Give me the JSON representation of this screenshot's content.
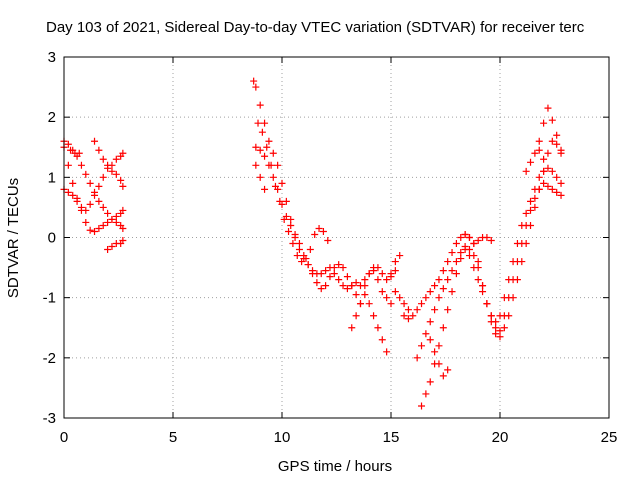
{
  "chart_data": {
    "type": "scatter",
    "title": "Day 103 of 2021, Sidereal Day-to-day VTEC variation (SDTVAR) for receiver terc",
    "xlabel": "GPS time / hours",
    "ylabel": "SDTVAR / TECUs",
    "xlim": [
      0,
      25
    ],
    "ylim": [
      -3,
      3
    ],
    "xticks": [
      0,
      5,
      10,
      15,
      20,
      25
    ],
    "yticks": [
      -3,
      -2,
      -1,
      0,
      1,
      2,
      3
    ],
    "grid": true,
    "marker": "plus",
    "color": "#ff0000",
    "series": [
      {
        "x": [
          0.0,
          0.2,
          0.4,
          0.6,
          0.8,
          1.0,
          1.2,
          1.4,
          1.6,
          1.8,
          2.0,
          2.2,
          2.4,
          2.6,
          2.7
        ],
        "y": [
          1.5,
          1.2,
          0.9,
          0.65,
          0.45,
          0.25,
          0.12,
          0.1,
          0.15,
          0.2,
          0.25,
          0.3,
          0.35,
          0.4,
          0.45
        ]
      },
      {
        "x": [
          0.0,
          0.2,
          0.4,
          0.6,
          0.8,
          1.0,
          1.2,
          1.4,
          1.6,
          1.8,
          2.0,
          2.2,
          2.4,
          2.6,
          2.7
        ],
        "y": [
          0.8,
          0.75,
          0.7,
          0.6,
          0.5,
          0.45,
          0.55,
          0.7,
          0.85,
          1.0,
          1.15,
          1.2,
          1.3,
          1.35,
          1.4
        ]
      },
      {
        "x": [
          0.0,
          0.2,
          0.4,
          0.6,
          0.8,
          1.0,
          1.2,
          1.4,
          1.6,
          1.8,
          2.0,
          2.2,
          2.4,
          2.6,
          2.7
        ],
        "y": [
          1.6,
          1.55,
          1.45,
          1.35,
          1.2,
          1.05,
          0.9,
          0.75,
          0.6,
          0.5,
          0.4,
          0.3,
          0.25,
          0.2,
          0.15
        ]
      },
      {
        "x": [
          1.4,
          1.6,
          1.8,
          2.0,
          2.2,
          2.4,
          2.6,
          2.7
        ],
        "y": [
          1.6,
          1.45,
          1.3,
          1.2,
          1.1,
          1.05,
          0.95,
          0.85
        ]
      },
      {
        "x": [
          2.0,
          2.2,
          2.4,
          2.6,
          2.7
        ],
        "y": [
          -0.2,
          -0.15,
          -0.1,
          -0.1,
          -0.05
        ]
      },
      {
        "x": [
          0.3,
          0.5,
          0.7
        ],
        "y": [
          1.45,
          1.4,
          1.4
        ]
      },
      {
        "x": [
          8.7,
          8.8,
          9.0,
          9.2,
          9.4,
          9.6,
          9.8,
          10.0,
          10.2,
          10.4,
          10.6,
          10.8,
          11.0,
          11.2,
          11.4,
          11.6,
          11.8,
          12.0,
          12.2,
          12.4,
          12.6,
          12.8,
          13.0,
          13.2,
          13.4,
          13.6,
          13.8,
          14.0,
          14.2,
          14.4,
          14.6,
          14.8,
          15.0,
          15.2
        ],
        "y": [
          2.6,
          2.5,
          2.2,
          1.9,
          1.6,
          1.4,
          1.2,
          0.9,
          0.6,
          0.3,
          0.0,
          -0.2,
          -0.35,
          -0.45,
          -0.55,
          -0.6,
          -0.6,
          -0.55,
          -0.5,
          -0.6,
          -0.7,
          -0.8,
          -0.85,
          -0.8,
          -0.75,
          -0.8,
          -0.95,
          -1.1,
          -1.3,
          -1.5,
          -1.7,
          -1.9,
          -0.6,
          -0.4
        ]
      },
      {
        "x": [
          8.8,
          9.0,
          9.2,
          9.4,
          9.6,
          9.8,
          10.0,
          10.2,
          10.4,
          10.6,
          10.8,
          11.0,
          11.2,
          11.4,
          11.6,
          11.8,
          12.0,
          12.2,
          12.4,
          12.6,
          12.8,
          13.0,
          13.2,
          13.4,
          13.6
        ],
        "y": [
          1.5,
          1.45,
          1.35,
          1.2,
          1.0,
          0.8,
          0.55,
          0.35,
          0.2,
          0.05,
          -0.1,
          -0.3,
          -0.45,
          -0.6,
          -0.75,
          -0.85,
          -0.8,
          -0.65,
          -0.5,
          -0.45,
          -0.5,
          -0.65,
          -0.8,
          -0.95,
          -1.1
        ]
      },
      {
        "x": [
          8.9,
          9.1,
          9.3,
          9.5,
          9.7,
          9.9,
          10.1,
          10.3,
          10.5,
          10.7,
          10.9,
          11.1,
          11.3,
          11.5,
          11.7,
          11.9,
          12.1
        ],
        "y": [
          1.9,
          1.75,
          1.5,
          1.2,
          0.85,
          0.6,
          0.3,
          0.1,
          -0.1,
          -0.3,
          -0.4,
          -0.35,
          -0.2,
          0.05,
          0.15,
          0.1,
          -0.05
        ]
      },
      {
        "x": [
          8.8,
          9.0,
          9.2
        ],
        "y": [
          1.2,
          1.0,
          0.8
        ]
      },
      {
        "x": [
          13.2,
          13.4,
          13.6,
          13.8,
          14.0,
          14.2,
          14.4,
          14.6,
          14.8,
          15.0,
          15.2,
          15.4,
          15.6,
          15.8
        ],
        "y": [
          -1.5,
          -1.3,
          -1.1,
          -0.8,
          -0.6,
          -0.5,
          -0.7,
          -0.9,
          -1.0,
          -1.1,
          -0.9,
          -1.0,
          -1.1,
          -1.2
        ]
      },
      {
        "x": [
          13.8,
          14.0,
          14.2,
          14.4,
          14.6,
          14.8,
          15.0,
          15.2,
          15.4
        ],
        "y": [
          -0.7,
          -0.6,
          -0.55,
          -0.5,
          -0.6,
          -0.7,
          -0.65,
          -0.55,
          -0.3
        ]
      },
      {
        "x": [
          15.6,
          15.8,
          16.0,
          16.2,
          16.4,
          16.6,
          16.8,
          17.0,
          17.2,
          17.4,
          17.6,
          17.8,
          18.0,
          18.2,
          18.4,
          18.6,
          18.8,
          19.0,
          19.2,
          19.4,
          19.6,
          19.8,
          20.0,
          20.2,
          20.4,
          20.6,
          20.8,
          21.0,
          21.2,
          21.4,
          21.6,
          21.8,
          22.0,
          22.2,
          22.4,
          22.6,
          22.8
        ],
        "y": [
          -1.3,
          -1.35,
          -1.3,
          -1.2,
          -1.1,
          -1.0,
          -0.9,
          -0.8,
          -0.7,
          -0.55,
          -0.4,
          -0.25,
          -0.1,
          0.0,
          0.05,
          0.0,
          -0.1,
          -0.4,
          -0.8,
          -1.1,
          -1.3,
          -1.4,
          -1.3,
          -1.0,
          -0.7,
          -0.4,
          -0.1,
          0.2,
          0.4,
          0.6,
          0.8,
          1.0,
          1.1,
          1.15,
          1.1,
          1.0,
          0.9
        ]
      },
      {
        "x": [
          16.2,
          16.4,
          16.6,
          16.8,
          17.0,
          17.2,
          17.4,
          17.6,
          17.8,
          18.0,
          18.2,
          18.4,
          18.6,
          18.8,
          19.0,
          19.2,
          19.4,
          19.6,
          19.8,
          20.0,
          20.2,
          20.4,
          20.6,
          20.8,
          21.0,
          21.2,
          21.4,
          21.6,
          21.8,
          22.0,
          22.2,
          22.4,
          22.6,
          22.8
        ],
        "y": [
          -2.0,
          -1.8,
          -1.6,
          -1.4,
          -1.2,
          -1.0,
          -0.85,
          -0.7,
          -0.55,
          -0.4,
          -0.25,
          -0.15,
          -0.2,
          -0.3,
          -0.5,
          -0.8,
          -1.1,
          -1.4,
          -1.6,
          -1.55,
          -1.3,
          -1.0,
          -0.7,
          -0.4,
          -0.1,
          0.2,
          0.45,
          0.65,
          0.8,
          0.9,
          0.85,
          0.8,
          0.75,
          0.7
        ]
      },
      {
        "x": [
          16.4,
          16.6,
          16.8,
          17.0,
          17.2,
          17.4,
          17.6,
          17.8,
          18.0,
          18.2,
          18.4,
          18.6,
          18.8,
          19.0,
          19.2,
          19.4,
          19.6,
          19.8,
          20.0,
          20.2,
          20.4,
          20.6,
          20.8,
          21.0,
          21.2,
          21.4,
          21.6,
          21.8,
          22.0,
          22.2,
          22.4,
          22.6,
          22.8
        ],
        "y": [
          -2.8,
          -2.6,
          -2.4,
          -2.1,
          -1.8,
          -1.5,
          -1.2,
          -0.9,
          -0.6,
          -0.35,
          -0.2,
          -0.3,
          -0.5,
          -0.7,
          -0.9,
          -1.1,
          -1.3,
          -1.5,
          -1.65,
          -1.5,
          -1.3,
          -1.0,
          -0.7,
          -0.4,
          -0.1,
          0.2,
          0.5,
          0.8,
          1.1,
          1.4,
          1.6,
          1.55,
          1.4
        ]
      },
      {
        "x": [
          16.8,
          17.0,
          17.2,
          17.4,
          17.6
        ],
        "y": [
          -1.7,
          -1.9,
          -2.1,
          -2.3,
          -2.2
        ]
      },
      {
        "x": [
          18.4,
          18.6,
          18.8,
          19.0,
          19.2,
          19.4,
          19.6
        ],
        "y": [
          0.05,
          0.0,
          -0.1,
          -0.05,
          0.0,
          0.0,
          -0.05
        ]
      },
      {
        "x": [
          21.8,
          22.0,
          22.2,
          22.4,
          22.6,
          22.8
        ],
        "y": [
          1.6,
          1.9,
          2.15,
          1.95,
          1.7,
          1.45
        ]
      },
      {
        "x": [
          21.2,
          21.4,
          21.6,
          21.8,
          22.0
        ],
        "y": [
          1.1,
          1.25,
          1.4,
          1.45,
          1.3
        ]
      }
    ]
  }
}
